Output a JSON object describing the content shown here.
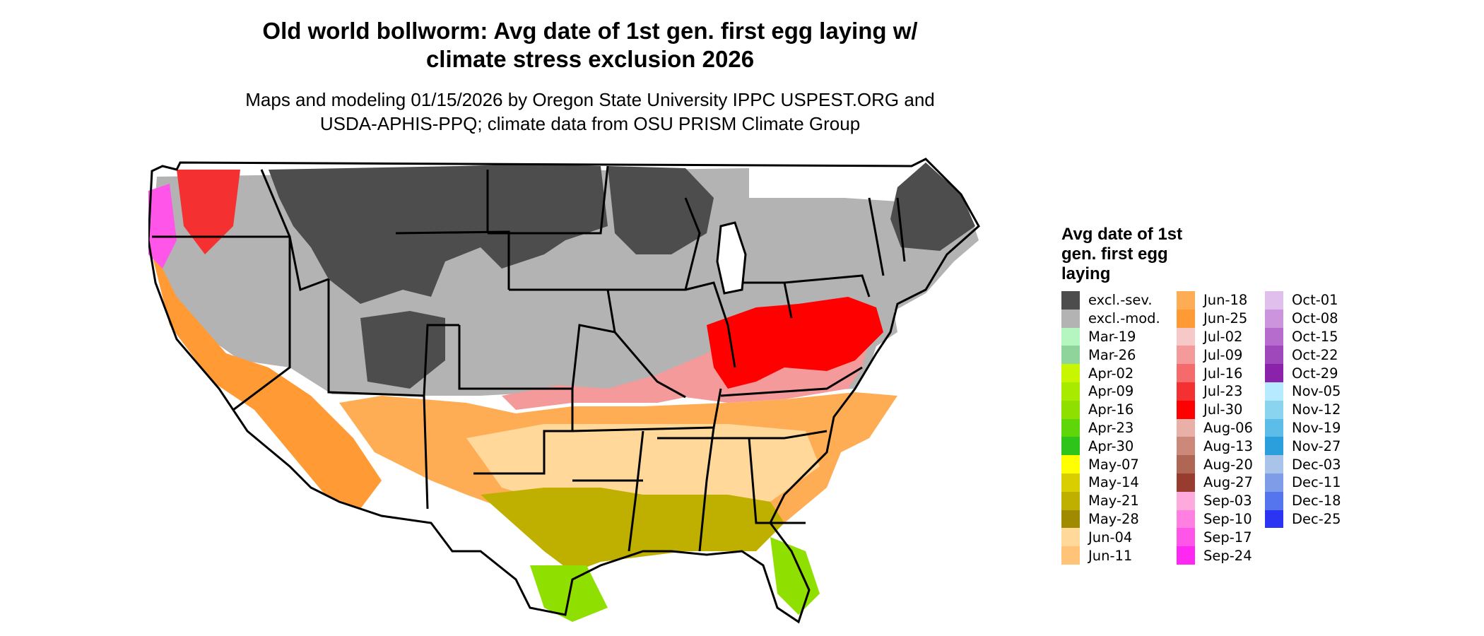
{
  "title_lines": [
    "Old world bollworm: Avg date of 1st gen. first egg laying w/",
    "climate stress exclusion 2026"
  ],
  "subtitle_lines": [
    "Maps and modeling 01/15/2026 by Oregon State University IPPC USPEST.ORG and",
    "USDA-APHIS-PPQ; climate data from OSU PRISM Climate Group"
  ],
  "legend": {
    "title_lines": [
      "Avg date of 1st",
      "gen. first egg",
      "laying"
    ],
    "columns": [
      [
        {
          "label": "excl.-sev.",
          "color": "#4d4d4d"
        },
        {
          "label": "excl.-mod.",
          "color": "#b3b3b3"
        },
        {
          "label": "Mar-19",
          "color": "#b5f5c0"
        },
        {
          "label": "Mar-26",
          "color": "#8fd49a"
        },
        {
          "label": "Apr-02",
          "color": "#c8f500"
        },
        {
          "label": "Apr-09",
          "color": "#a8ea00"
        },
        {
          "label": "Apr-16",
          "color": "#8fe000"
        },
        {
          "label": "Apr-23",
          "color": "#5fd60a"
        },
        {
          "label": "Apr-30",
          "color": "#2ec41a"
        },
        {
          "label": "May-07",
          "color": "#ffff00"
        },
        {
          "label": "May-14",
          "color": "#d9cf00"
        },
        {
          "label": "May-21",
          "color": "#bfb000"
        },
        {
          "label": "May-28",
          "color": "#a08a00"
        },
        {
          "label": "Jun-04",
          "color": "#ffd89a"
        },
        {
          "label": "Jun-11",
          "color": "#ffc478"
        }
      ],
      [
        {
          "label": "Jun-18",
          "color": "#ffad55"
        },
        {
          "label": "Jun-25",
          "color": "#ff9a35"
        },
        {
          "label": "Jul-02",
          "color": "#f7c8c8"
        },
        {
          "label": "Jul-09",
          "color": "#f49a9a"
        },
        {
          "label": "Jul-16",
          "color": "#f56a6a"
        },
        {
          "label": "Jul-23",
          "color": "#f53030"
        },
        {
          "label": "Jul-30",
          "color": "#ff0000"
        },
        {
          "label": "Aug-06",
          "color": "#e8b0a6"
        },
        {
          "label": "Aug-13",
          "color": "#cc8878"
        },
        {
          "label": "Aug-20",
          "color": "#b06654"
        },
        {
          "label": "Aug-27",
          "color": "#983c30"
        },
        {
          "label": "Sep-03",
          "color": "#ffaadd"
        },
        {
          "label": "Sep-10",
          "color": "#ff80e0"
        },
        {
          "label": "Sep-17",
          "color": "#ff55e8"
        },
        {
          "label": "Sep-24",
          "color": "#ff28f2"
        }
      ],
      [
        {
          "label": "Oct-01",
          "color": "#e0bfec"
        },
        {
          "label": "Oct-08",
          "color": "#cc94dc"
        },
        {
          "label": "Oct-15",
          "color": "#b56ccc"
        },
        {
          "label": "Oct-22",
          "color": "#9e48bc"
        },
        {
          "label": "Oct-29",
          "color": "#8b22aa"
        },
        {
          "label": "Nov-05",
          "color": "#b5eaff"
        },
        {
          "label": "Nov-12",
          "color": "#8bd4f0"
        },
        {
          "label": "Nov-19",
          "color": "#5bbde8"
        },
        {
          "label": "Nov-27",
          "color": "#2a9fdc"
        },
        {
          "label": "Dec-03",
          "color": "#a9c4e8"
        },
        {
          "label": "Dec-11",
          "color": "#7f9ce8"
        },
        {
          "label": "Dec-18",
          "color": "#5575ee"
        },
        {
          "label": "Dec-25",
          "color": "#2b34f2"
        }
      ]
    ]
  }
}
